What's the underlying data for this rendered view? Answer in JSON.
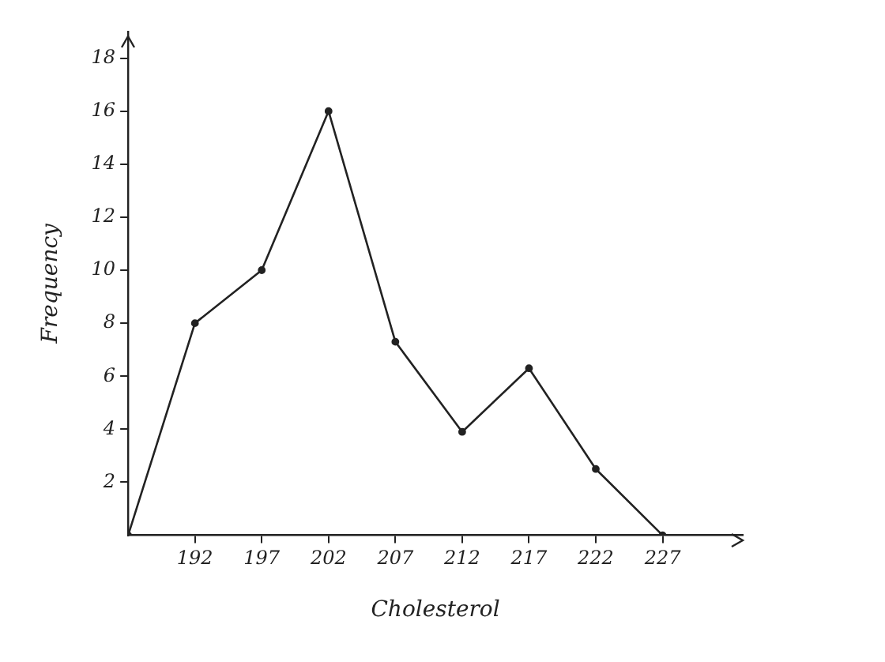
{
  "chart_data": {
    "type": "line",
    "xlabel": "Cholesterol",
    "ylabel": "Frequency",
    "x": [
      187,
      192,
      197,
      202,
      207,
      212,
      217,
      222,
      227
    ],
    "series": [
      {
        "color": "#222222",
        "values": [
          0,
          8,
          10,
          16,
          7.3,
          3.9,
          6.3,
          2.5,
          0
        ]
      }
    ],
    "xlim": [
      187,
      233
    ],
    "xticks": [
      192,
      197,
      202,
      207,
      212,
      217,
      222,
      227
    ],
    "ylim": [
      0,
      19
    ],
    "yticks": [
      2,
      4,
      6,
      8,
      10,
      12,
      14,
      16,
      18
    ],
    "grid": false,
    "legend": false,
    "marker": "circle",
    "line_style": "solid"
  }
}
